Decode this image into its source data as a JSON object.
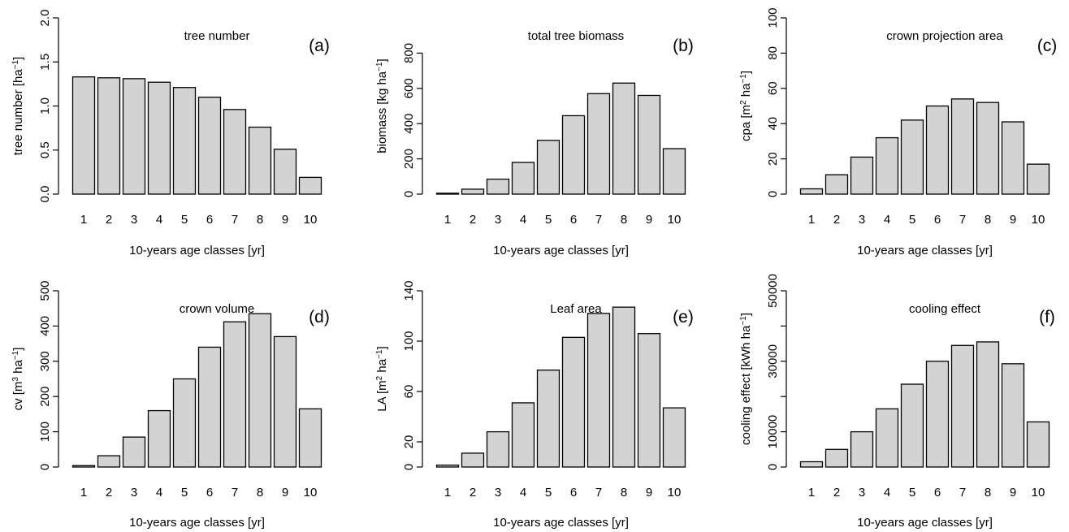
{
  "chart_data": [
    {
      "type": "bar",
      "title": "tree number",
      "panel_label": "(a)",
      "categories": [
        "1",
        "2",
        "3",
        "4",
        "5",
        "6",
        "7",
        "8",
        "9",
        "10"
      ],
      "values": [
        1.33,
        1.32,
        1.31,
        1.27,
        1.21,
        1.1,
        0.96,
        0.76,
        0.51,
        0.19
      ],
      "xlabel": "10-years age classes [yr]",
      "ylabel": {
        "main": "tree number [ha",
        "sup": "−1",
        "tail": "]"
      },
      "ylim": [
        0,
        2.0
      ],
      "yticks": [
        "0.0",
        "0.5",
        "1.0",
        "1.5",
        "2.0"
      ]
    },
    {
      "type": "bar",
      "title": "total tree biomass",
      "panel_label": "(b)",
      "categories": [
        "1",
        "2",
        "3",
        "4",
        "5",
        "6",
        "7",
        "8",
        "9",
        "10"
      ],
      "values": [
        5,
        28,
        85,
        180,
        305,
        445,
        570,
        630,
        560,
        258
      ],
      "xlabel": "10-years age classes [yr]",
      "ylabel": {
        "main": "biomass [kg ha",
        "sup": "−1",
        "tail": "]"
      },
      "ylim": [
        0,
        1000
      ],
      "yticks": [
        "0",
        "200",
        "400",
        "600",
        "800"
      ]
    },
    {
      "type": "bar",
      "title": "crown projection area",
      "panel_label": "(c)",
      "categories": [
        "1",
        "2",
        "3",
        "4",
        "5",
        "6",
        "7",
        "8",
        "9",
        "10"
      ],
      "values": [
        3,
        11,
        21,
        32,
        42,
        50,
        54,
        52,
        41,
        17
      ],
      "xlabel": "10-years age classes [yr]",
      "ylabel": {
        "main": "cpa [m",
        "sup": "2",
        "mid": " ha",
        "sup2": "−1",
        "tail": "]"
      },
      "ylim": [
        0,
        100
      ],
      "yticks": [
        "0",
        "20",
        "40",
        "60",
        "80",
        "100"
      ]
    },
    {
      "type": "bar",
      "title": "crown volume",
      "panel_label": "(d)",
      "categories": [
        "1",
        "2",
        "3",
        "4",
        "5",
        "6",
        "7",
        "8",
        "9",
        "10"
      ],
      "values": [
        4,
        32,
        85,
        160,
        250,
        340,
        412,
        435,
        370,
        165
      ],
      "xlabel": "10-years age classes [yr]",
      "ylabel": {
        "main": "cv [m",
        "sup": "3",
        "mid": " ha",
        "sup2": "−1",
        "tail": "]"
      },
      "ylim": [
        0,
        500
      ],
      "yticks": [
        "0",
        "100",
        "200",
        "300",
        "400",
        "500"
      ]
    },
    {
      "type": "bar",
      "title": "Leaf area",
      "panel_label": "(e)",
      "categories": [
        "1",
        "2",
        "3",
        "4",
        "5",
        "6",
        "7",
        "8",
        "9",
        "10"
      ],
      "values": [
        1.5,
        11,
        28,
        51,
        77,
        103,
        122,
        127,
        106,
        47
      ],
      "xlabel": "10-years age classes [yr]",
      "ylabel": {
        "main": "LA [m",
        "sup": "2",
        "mid": " ha",
        "sup2": "−1",
        "tail": "]"
      },
      "ylim": [
        0,
        140
      ],
      "yticks": [
        "0",
        "20",
        "60",
        "100",
        "140"
      ],
      "ytick_values": [
        0,
        20,
        60,
        100,
        140
      ]
    },
    {
      "type": "bar",
      "title": "cooling effect",
      "panel_label": "(f)",
      "categories": [
        "1",
        "2",
        "3",
        "4",
        "5",
        "6",
        "7",
        "8",
        "9",
        "10"
      ],
      "values": [
        1500,
        5000,
        10000,
        16500,
        23500,
        30000,
        34500,
        35500,
        29300,
        12800
      ],
      "xlabel": "10-years age classes [yr]",
      "ylabel": {
        "main": "cooling effect [kWh ha",
        "sup": "−1",
        "tail": "]"
      },
      "ylim": [
        0,
        50000
      ],
      "yticks": [
        "0",
        "10000",
        "30000",
        "50000"
      ],
      "ytick_values": [
        0,
        10000,
        30000,
        50000
      ],
      "ytick_minor": [
        20000,
        40000
      ]
    }
  ]
}
